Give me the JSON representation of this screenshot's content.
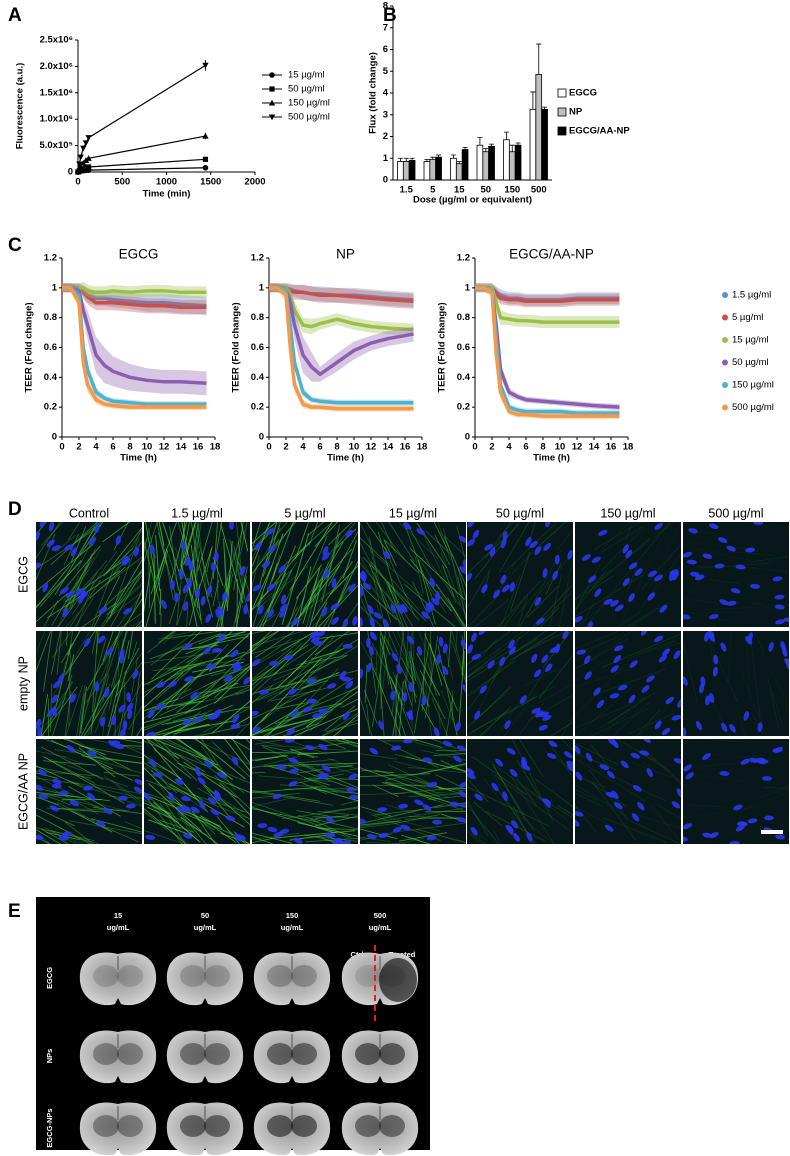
{
  "chart_data": [
    {
      "type": "line",
      "panel": "A",
      "xlabel": "Time (min)",
      "ylabel": "Fluorescence (a.u.)",
      "x": [
        0,
        15,
        30,
        60,
        90,
        120,
        1440
      ],
      "xlim": [
        0,
        2000
      ],
      "xticks": [
        0,
        500,
        1000,
        1500,
        2000
      ],
      "ylim": [
        0,
        2500000
      ],
      "yticks": [
        0,
        {
          "value": 500000,
          "label": "5.0x10⁵"
        },
        {
          "value": 1000000,
          "label": "1.0x10⁶"
        },
        {
          "value": 1500000,
          "label": "1.5x10⁶"
        },
        {
          "value": 2000000,
          "label": "2.0x10⁶"
        },
        {
          "value": 2500000,
          "label": "2.5x10⁶"
        }
      ],
      "series": [
        {
          "name": "15 µg/ml",
          "marker": "circle",
          "values": [
            0,
            10000,
            15000,
            25000,
            30000,
            35000,
            80000
          ],
          "errors": [
            null,
            null,
            null,
            null,
            null,
            null,
            15000
          ]
        },
        {
          "name": "50 µg/ml",
          "marker": "square",
          "values": [
            0,
            25000,
            40000,
            60000,
            80000,
            95000,
            240000
          ],
          "errors": [
            null,
            null,
            null,
            null,
            null,
            null,
            20000
          ]
        },
        {
          "name": "150 µg/ml",
          "marker": "triangle",
          "values": [
            0,
            60000,
            100000,
            170000,
            220000,
            260000,
            680000
          ],
          "errors": [
            null,
            null,
            null,
            null,
            null,
            null,
            60000
          ]
        },
        {
          "name": "500 µg/ml",
          "marker": "triangle-down",
          "values": [
            0,
            150000,
            280000,
            450000,
            550000,
            650000,
            2020000
          ],
          "errors": [
            null,
            null,
            null,
            null,
            null,
            null,
            100000
          ]
        }
      ]
    },
    {
      "type": "bar",
      "panel": "B",
      "xlabel": "Dose (µg/ml or equivalent)",
      "ylabel": "Flux (fold change)",
      "categories": [
        "1.5",
        "5",
        "15",
        "50",
        "150",
        "500"
      ],
      "ylim": [
        0,
        8
      ],
      "yticks": [
        0,
        1,
        2,
        3,
        4,
        5,
        6,
        7,
        8
      ],
      "series": [
        {
          "name": "EGCG",
          "color": "#ffffff",
          "values": [
            0.85,
            0.85,
            1.0,
            1.6,
            1.85,
            3.25
          ],
          "errors": [
            0.15,
            0.1,
            0.15,
            0.35,
            0.35,
            0.8
          ]
        },
        {
          "name": "NP",
          "color": "#bfbfbf",
          "values": [
            0.85,
            0.95,
            0.75,
            1.3,
            1.3,
            4.85
          ],
          "errors": [
            0.15,
            0.1,
            0.1,
            0.15,
            0.3,
            1.4
          ]
        },
        {
          "name": "EGCG/AA-NP",
          "color": "#000000",
          "values": [
            0.9,
            1.05,
            1.4,
            1.55,
            1.6,
            3.25
          ],
          "errors": [
            0.1,
            0.1,
            0.1,
            0.1,
            0.1,
            0.1
          ]
        }
      ]
    },
    {
      "type": "band",
      "panel": "C",
      "xlabel": "Time (h)",
      "ylabel": "TEER (Fold change)",
      "x": [
        0,
        1,
        2,
        2.5,
        3,
        4,
        5,
        6,
        8,
        10,
        12,
        14,
        17
      ],
      "xlim": [
        0,
        18
      ],
      "xticks": [
        0,
        2,
        4,
        6,
        8,
        10,
        12,
        14,
        16,
        18
      ],
      "ylim": [
        0,
        1.2
      ],
      "yticks": [
        0,
        0.2,
        0.4,
        0.6,
        0.8,
        1,
        1.2
      ],
      "legend": [
        {
          "name": "1.5 µg/ml",
          "color": "#5b8fd4"
        },
        {
          "name": "5 µg/ml",
          "color": "#c9504a"
        },
        {
          "name": "15 µg/ml",
          "color": "#9cbf4a"
        },
        {
          "name": "50 µg/ml",
          "color": "#8b5fb0"
        },
        {
          "name": "150 µg/ml",
          "color": "#4fb0cf"
        },
        {
          "name": "500 µg/ml",
          "color": "#f29a4a"
        }
      ],
      "subplots": [
        {
          "title": "EGCG",
          "series": [
            {
              "values": [
                1,
                1,
                1,
                0.98,
                0.95,
                0.93,
                0.93,
                0.92,
                0.91,
                0.9,
                0.9,
                0.89,
                0.88
              ],
              "errors": [
                0.03,
                0.03,
                0.03,
                0.04,
                0.05,
                0.05,
                0.05,
                0.05,
                0.05,
                0.06,
                0.06,
                0.06,
                0.06
              ]
            },
            {
              "values": [
                1,
                1,
                1,
                0.97,
                0.94,
                0.9,
                0.9,
                0.9,
                0.89,
                0.88,
                0.88,
                0.87,
                0.87
              ],
              "errors": [
                0.03,
                0.03,
                0.03,
                0.04,
                0.05,
                0.05,
                0.05,
                0.05,
                0.05,
                0.05,
                0.05,
                0.05,
                0.05
              ]
            },
            {
              "values": [
                1,
                1,
                1,
                1,
                0.98,
                0.97,
                0.97,
                0.98,
                0.97,
                0.98,
                0.98,
                0.97,
                0.97
              ],
              "errors": [
                0.03,
                0.03,
                0.03,
                0.04,
                0.04,
                0.04,
                0.04,
                0.04,
                0.04,
                0.04,
                0.04,
                0.04,
                0.04
              ]
            },
            {
              "values": [
                1,
                1,
                0.98,
                0.85,
                0.75,
                0.55,
                0.48,
                0.44,
                0.4,
                0.38,
                0.37,
                0.37,
                0.36
              ],
              "errors": [
                0.03,
                0.03,
                0.03,
                0.06,
                0.1,
                0.12,
                0.12,
                0.1,
                0.09,
                0.08,
                0.08,
                0.08,
                0.08
              ]
            },
            {
              "values": [
                1,
                1,
                0.95,
                0.6,
                0.45,
                0.3,
                0.26,
                0.24,
                0.23,
                0.22,
                0.22,
                0.22,
                0.22
              ],
              "errors": [
                0.02,
                0.02,
                0.03,
                0.05,
                0.04,
                0.03,
                0.02,
                0.02,
                0.02,
                0.02,
                0.02,
                0.02,
                0.02
              ]
            },
            {
              "values": [
                1,
                1,
                0.9,
                0.5,
                0.35,
                0.25,
                0.22,
                0.21,
                0.2,
                0.2,
                0.2,
                0.2,
                0.2
              ],
              "errors": [
                0.02,
                0.02,
                0.04,
                0.06,
                0.05,
                0.03,
                0.02,
                0.02,
                0.02,
                0.02,
                0.02,
                0.02,
                0.02
              ]
            }
          ]
        },
        {
          "title": "NP",
          "series": [
            {
              "values": [
                1,
                1,
                1,
                0.99,
                0.98,
                0.97,
                0.96,
                0.96,
                0.95,
                0.95,
                0.94,
                0.93,
                0.92
              ],
              "errors": [
                0.03,
                0.03,
                0.03,
                0.04,
                0.04,
                0.05,
                0.05,
                0.05,
                0.05,
                0.05,
                0.05,
                0.05,
                0.05
              ]
            },
            {
              "values": [
                1,
                1,
                1,
                0.98,
                0.97,
                0.97,
                0.96,
                0.95,
                0.95,
                0.94,
                0.93,
                0.92,
                0.91
              ],
              "errors": [
                0.03,
                0.03,
                0.03,
                0.04,
                0.05,
                0.05,
                0.05,
                0.05,
                0.05,
                0.05,
                0.05,
                0.05,
                0.05
              ]
            },
            {
              "values": [
                1,
                1,
                1,
                0.95,
                0.85,
                0.75,
                0.74,
                0.76,
                0.79,
                0.76,
                0.74,
                0.73,
                0.72
              ],
              "errors": [
                0.03,
                0.03,
                0.03,
                0.05,
                0.06,
                0.05,
                0.05,
                0.04,
                0.04,
                0.04,
                0.04,
                0.04,
                0.04
              ]
            },
            {
              "values": [
                1,
                1,
                0.98,
                0.9,
                0.75,
                0.55,
                0.47,
                0.42,
                0.5,
                0.58,
                0.63,
                0.66,
                0.69
              ],
              "errors": [
                0.03,
                0.03,
                0.03,
                0.06,
                0.1,
                0.12,
                0.1,
                0.05,
                0.06,
                0.06,
                0.05,
                0.05,
                0.05
              ]
            },
            {
              "values": [
                1,
                1,
                0.98,
                0.75,
                0.5,
                0.3,
                0.25,
                0.24,
                0.23,
                0.23,
                0.23,
                0.23,
                0.23
              ],
              "errors": [
                0.02,
                0.02,
                0.03,
                0.05,
                0.05,
                0.03,
                0.02,
                0.02,
                0.02,
                0.02,
                0.02,
                0.02,
                0.02
              ]
            },
            {
              "values": [
                1,
                1,
                0.95,
                0.6,
                0.35,
                0.22,
                0.2,
                0.2,
                0.19,
                0.19,
                0.19,
                0.19,
                0.19
              ],
              "errors": [
                0.02,
                0.02,
                0.04,
                0.06,
                0.05,
                0.03,
                0.02,
                0.02,
                0.02,
                0.02,
                0.02,
                0.02,
                0.02
              ]
            }
          ]
        },
        {
          "title": "EGCG/AA-NP",
          "series": [
            {
              "values": [
                1,
                1,
                1,
                0.97,
                0.95,
                0.93,
                0.93,
                0.92,
                0.92,
                0.92,
                0.93,
                0.93,
                0.93
              ],
              "errors": [
                0.03,
                0.03,
                0.03,
                0.04,
                0.04,
                0.04,
                0.04,
                0.04,
                0.04,
                0.04,
                0.04,
                0.04,
                0.04
              ]
            },
            {
              "values": [
                1,
                1,
                1,
                0.96,
                0.93,
                0.92,
                0.92,
                0.91,
                0.91,
                0.91,
                0.92,
                0.92,
                0.92
              ],
              "errors": [
                0.03,
                0.03,
                0.03,
                0.04,
                0.04,
                0.04,
                0.04,
                0.04,
                0.04,
                0.04,
                0.04,
                0.04,
                0.04
              ]
            },
            {
              "values": [
                1,
                1,
                1,
                0.9,
                0.8,
                0.79,
                0.78,
                0.78,
                0.77,
                0.77,
                0.77,
                0.77,
                0.77
              ],
              "errors": [
                0.03,
                0.03,
                0.03,
                0.05,
                0.05,
                0.04,
                0.04,
                0.04,
                0.04,
                0.04,
                0.04,
                0.04,
                0.04
              ]
            },
            {
              "values": [
                1,
                1,
                0.98,
                0.75,
                0.45,
                0.3,
                0.27,
                0.25,
                0.24,
                0.23,
                0.22,
                0.21,
                0.2
              ],
              "errors": [
                0.02,
                0.02,
                0.03,
                0.06,
                0.05,
                0.03,
                0.02,
                0.02,
                0.02,
                0.02,
                0.02,
                0.02,
                0.02
              ]
            },
            {
              "values": [
                1,
                1,
                0.98,
                0.65,
                0.35,
                0.2,
                0.18,
                0.17,
                0.17,
                0.17,
                0.16,
                0.16,
                0.16
              ],
              "errors": [
                0.02,
                0.02,
                0.03,
                0.05,
                0.04,
                0.02,
                0.02,
                0.02,
                0.02,
                0.02,
                0.02,
                0.02,
                0.02
              ]
            },
            {
              "values": [
                1,
                1,
                0.97,
                0.55,
                0.3,
                0.17,
                0.15,
                0.15,
                0.14,
                0.14,
                0.14,
                0.14,
                0.14
              ],
              "errors": [
                0.02,
                0.02,
                0.03,
                0.05,
                0.04,
                0.02,
                0.02,
                0.02,
                0.02,
                0.02,
                0.02,
                0.02,
                0.02
              ]
            }
          ]
        }
      ]
    }
  ],
  "panel_d": {
    "label": "D",
    "columns": [
      "Control",
      "1.5 µg/ml",
      "5 µg/ml",
      "15 µg/ml",
      "50 µg/ml",
      "150 µg/ml",
      "500 µg/ml"
    ],
    "rows": [
      "EGCG",
      "empty NP",
      "EGCG/AA NP"
    ]
  },
  "panel_e": {
    "label": "E",
    "columns": [
      [
        "15",
        "ug/mL"
      ],
      [
        "50",
        "ug/mL"
      ],
      [
        "150",
        "ug/mL"
      ],
      [
        "500",
        "ug/mL"
      ]
    ],
    "rows": [
      "EGCG",
      "NPs",
      "EGCG-NPs"
    ],
    "ctrl_label": "Ctrl",
    "treated_label": "Treated"
  }
}
